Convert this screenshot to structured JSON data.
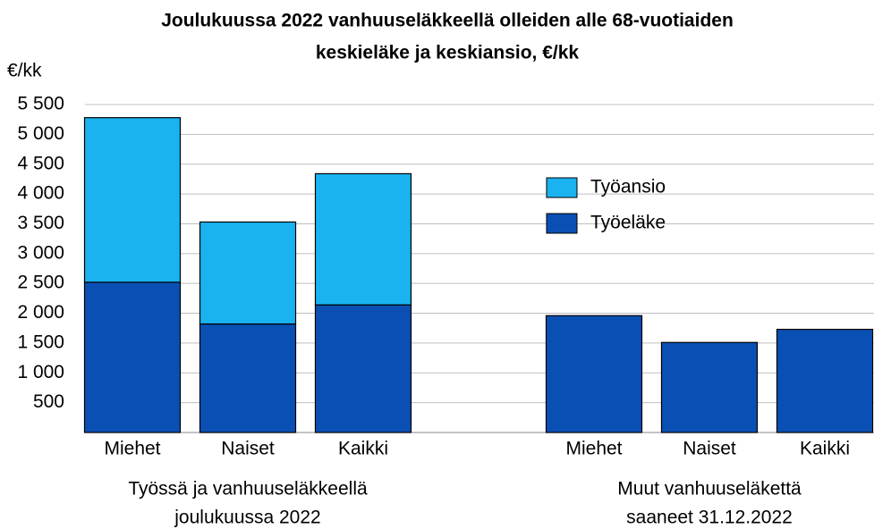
{
  "chart_data": {
    "type": "stacked_bar",
    "title": [
      "Joulukuussa 2022 vanhuuseläkkeellä olleiden alle 68-vuotiaiden",
      "keskieläke ja keskiansio, €/kk"
    ],
    "y_label": "€/kk",
    "categories": [
      "Miehet",
      "Naiset",
      "Kaikki",
      "Miehet",
      "Naiset",
      "Kaikki"
    ],
    "category_groups": [
      [
        "Työssä ja vanhuuseläkkeellä",
        "joulukuussa 2022"
      ],
      [
        "Muut vanhuuseläkettä",
        "saaneet 31.12.2022"
      ]
    ],
    "series": [
      {
        "name": "Työeläke",
        "color": "#0a50b4",
        "values": [
          2520,
          1820,
          2140,
          1960,
          1510,
          1730
        ]
      },
      {
        "name": "Työansio",
        "color": "#1ab2f0",
        "values": [
          2760,
          1710,
          2200,
          null,
          null,
          null
        ]
      }
    ],
    "ylim": [
      0,
      5500
    ],
    "yticks": [
      500,
      {
        "value": 1000,
        "label": "1 000"
      },
      {
        "value": 1500,
        "label": "1 500"
      },
      {
        "value": 2000,
        "label": "2 000"
      },
      {
        "value": 2500,
        "label": "2 500"
      },
      {
        "value": 3000,
        "label": "3 000"
      },
      {
        "value": 3500,
        "label": "3 500"
      },
      {
        "value": 4000,
        "label": "4 000"
      },
      {
        "value": 4500,
        "label": "4 500"
      },
      {
        "value": 5000,
        "label": "5 000"
      },
      {
        "value": 5500,
        "label": "5 500"
      }
    ],
    "grid": true
  }
}
